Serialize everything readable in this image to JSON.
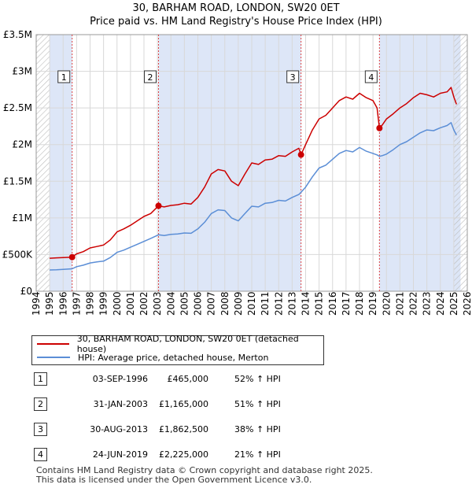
{
  "header": {
    "title_line1": "30, BARHAM ROAD, LONDON, SW20 0ET",
    "title_line2": "Price paid vs. HM Land Registry's House Price Index (HPI)"
  },
  "colors": {
    "property": "#cc0000",
    "hpi": "#5b8ed6",
    "shade": "#dde6f7",
    "grid": "#d8d8d8",
    "marker_line": "#dd4444"
  },
  "chart_data": {
    "type": "line",
    "title": "Price paid vs. HM Land Registry's House Price Index (HPI)",
    "xlabel": "",
    "ylabel": "",
    "xlim": [
      1994,
      2026
    ],
    "ylim": [
      0,
      3500000
    ],
    "x_ticks": [
      "1994",
      "1995",
      "1996",
      "1997",
      "1998",
      "1999",
      "2000",
      "2001",
      "2002",
      "2003",
      "2004",
      "2005",
      "2006",
      "2007",
      "2008",
      "2009",
      "2010",
      "2011",
      "2012",
      "2013",
      "2014",
      "2015",
      "2016",
      "2017",
      "2018",
      "2019",
      "2020",
      "2021",
      "2022",
      "2023",
      "2024",
      "2025",
      "2026"
    ],
    "y_ticks": [
      {
        "value": 0,
        "label": "£0"
      },
      {
        "value": 500000,
        "label": "£500K"
      },
      {
        "value": 1000000,
        "label": "£1M"
      },
      {
        "value": 1500000,
        "label": "£1.5M"
      },
      {
        "value": 2000000,
        "label": "£2M"
      },
      {
        "value": 2500000,
        "label": "£2.5M"
      },
      {
        "value": 3000000,
        "label": "£3M"
      },
      {
        "value": 3500000,
        "label": "£3.5M"
      }
    ],
    "grid": true,
    "shaded_ranges": [
      [
        1995.0,
        1996.67
      ],
      [
        2003.08,
        2013.66
      ],
      [
        2019.48,
        2025.5
      ]
    ],
    "hatched_ranges": [
      [
        1994.0,
        1995.0
      ],
      [
        2025.0,
        2026.0
      ]
    ],
    "series": [
      {
        "name": "30, BARHAM ROAD, LONDON, SW20 0ET (detached house)",
        "color": "#cc0000",
        "x": [
          1995.0,
          1995.5,
          1996.0,
          1996.67,
          1997.0,
          1997.5,
          1998.0,
          1998.5,
          1999.0,
          1999.5,
          2000.0,
          2000.5,
          2001.0,
          2001.5,
          2002.0,
          2002.5,
          2003.08,
          2003.5,
          2004.0,
          2004.5,
          2005.0,
          2005.5,
          2006.0,
          2006.5,
          2007.0,
          2007.5,
          2008.0,
          2008.5,
          2009.0,
          2009.5,
          2010.0,
          2010.5,
          2011.0,
          2011.5,
          2012.0,
          2012.5,
          2013.0,
          2013.5,
          2013.66,
          2014.0,
          2014.5,
          2015.0,
          2015.5,
          2016.0,
          2016.5,
          2017.0,
          2017.5,
          2018.0,
          2018.5,
          2019.0,
          2019.3,
          2019.48,
          2019.7,
          2020.0,
          2020.5,
          2021.0,
          2021.5,
          2022.0,
          2022.5,
          2023.0,
          2023.5,
          2024.0,
          2024.5,
          2024.8,
          2025.0,
          2025.2
        ],
        "values": [
          450000,
          455000,
          458000,
          465000,
          510000,
          540000,
          590000,
          610000,
          630000,
          700000,
          810000,
          850000,
          900000,
          960000,
          1020000,
          1060000,
          1165000,
          1150000,
          1170000,
          1180000,
          1200000,
          1190000,
          1280000,
          1420000,
          1600000,
          1660000,
          1640000,
          1500000,
          1440000,
          1600000,
          1750000,
          1730000,
          1790000,
          1800000,
          1850000,
          1840000,
          1900000,
          1950000,
          1862500,
          2000000,
          2200000,
          2350000,
          2400000,
          2500000,
          2600000,
          2650000,
          2620000,
          2700000,
          2640000,
          2600000,
          2500000,
          2225000,
          2270000,
          2350000,
          2420000,
          2500000,
          2560000,
          2640000,
          2700000,
          2680000,
          2650000,
          2700000,
          2720000,
          2780000,
          2650000,
          2550000
        ]
      },
      {
        "name": "HPI: Average price, detached house, Merton",
        "color": "#5b8ed6",
        "x": [
          1995.0,
          1995.5,
          1996.0,
          1996.67,
          1997.0,
          1997.5,
          1998.0,
          1998.5,
          1999.0,
          1999.5,
          2000.0,
          2000.5,
          2001.0,
          2001.5,
          2002.0,
          2002.5,
          2003.08,
          2003.5,
          2004.0,
          2004.5,
          2005.0,
          2005.5,
          2006.0,
          2006.5,
          2007.0,
          2007.5,
          2008.0,
          2008.5,
          2009.0,
          2009.5,
          2010.0,
          2010.5,
          2011.0,
          2011.5,
          2012.0,
          2012.5,
          2013.0,
          2013.5,
          2013.66,
          2014.0,
          2014.5,
          2015.0,
          2015.5,
          2016.0,
          2016.5,
          2017.0,
          2017.5,
          2018.0,
          2018.5,
          2019.0,
          2019.3,
          2019.48,
          2019.7,
          2020.0,
          2020.5,
          2021.0,
          2021.5,
          2022.0,
          2022.5,
          2023.0,
          2023.5,
          2024.0,
          2024.5,
          2024.8,
          2025.0,
          2025.2
        ],
        "values": [
          290000,
          293000,
          298000,
          306000,
          335000,
          355000,
          385000,
          400000,
          410000,
          460000,
          530000,
          560000,
          600000,
          640000,
          680000,
          720000,
          770000,
          760000,
          775000,
          780000,
          795000,
          790000,
          850000,
          940000,
          1060000,
          1110000,
          1100000,
          1000000,
          960000,
          1060000,
          1160000,
          1150000,
          1200000,
          1210000,
          1240000,
          1230000,
          1280000,
          1320000,
          1350000,
          1420000,
          1560000,
          1680000,
          1720000,
          1800000,
          1880000,
          1920000,
          1900000,
          1960000,
          1910000,
          1880000,
          1860000,
          1840000,
          1850000,
          1870000,
          1930000,
          2000000,
          2040000,
          2100000,
          2160000,
          2200000,
          2190000,
          2230000,
          2260000,
          2300000,
          2200000,
          2130000
        ]
      }
    ],
    "sales": [
      {
        "id": "1",
        "x": 1996.67,
        "value": 465000
      },
      {
        "id": "2",
        "x": 2003.08,
        "value": 1165000
      },
      {
        "id": "3",
        "x": 2013.66,
        "value": 1862500
      },
      {
        "id": "4",
        "x": 2019.48,
        "value": 2225000
      }
    ]
  },
  "legend": {
    "property_label": "30, BARHAM ROAD, LONDON, SW20 0ET (detached house)",
    "hpi_label": "HPI: Average price, detached house, Merton"
  },
  "sales_table": [
    {
      "num": "1",
      "date": "03-SEP-1996",
      "price": "£465,000",
      "hpi": "52% ↑ HPI"
    },
    {
      "num": "2",
      "date": "31-JAN-2003",
      "price": "£1,165,000",
      "hpi": "51% ↑ HPI"
    },
    {
      "num": "3",
      "date": "30-AUG-2013",
      "price": "£1,862,500",
      "hpi": "38% ↑ HPI"
    },
    {
      "num": "4",
      "date": "24-JUN-2019",
      "price": "£2,225,000",
      "hpi": "21% ↑ HPI"
    }
  ],
  "footer": {
    "line1": "Contains HM Land Registry data © Crown copyright and database right 2025.",
    "line2": "This data is licensed under the Open Government Licence v3.0."
  }
}
